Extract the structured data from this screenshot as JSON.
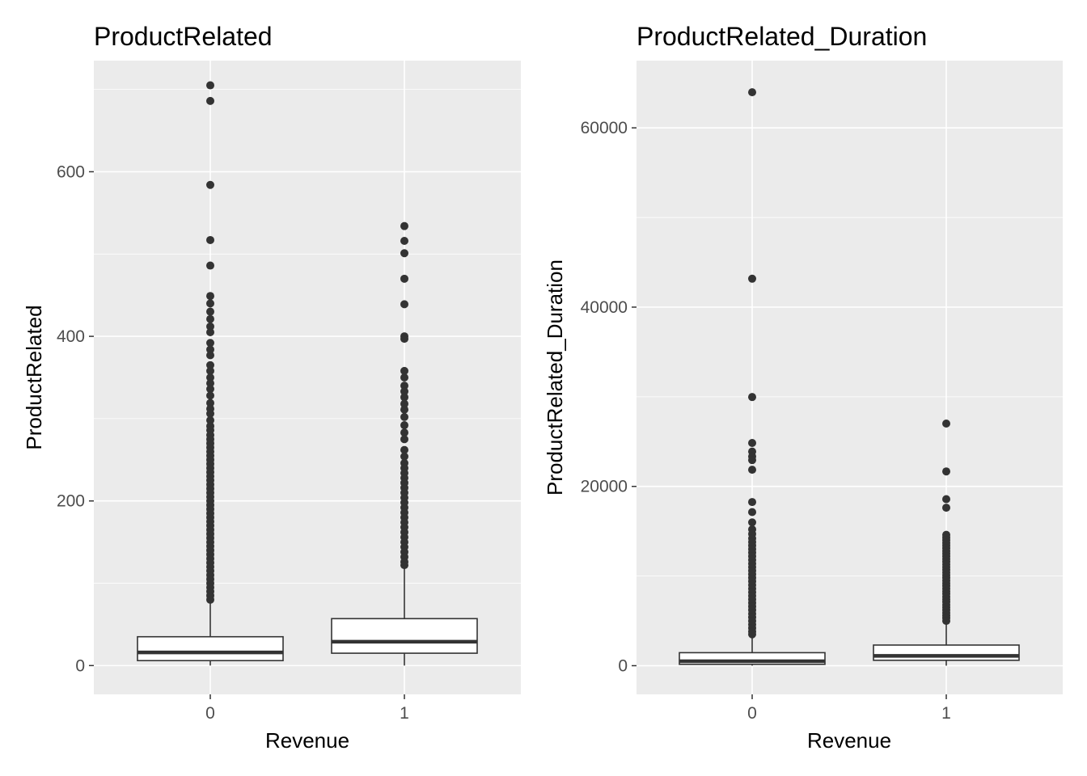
{
  "chart_data": [
    {
      "type": "boxplot",
      "title": "ProductRelated",
      "xlabel": "Revenue",
      "ylabel": "ProductRelated",
      "categories": [
        "0",
        "1"
      ],
      "ylim": [
        -35,
        735
      ],
      "yticks": [
        0,
        200,
        400,
        600
      ],
      "ytick_labels": [
        "0",
        "200",
        "400",
        "600"
      ],
      "grid": true,
      "boxes": [
        {
          "category": "0",
          "whisker_low": 0,
          "q1": 6,
          "median": 16,
          "q3": 35,
          "whisker_high": 78,
          "outliers": [
            705,
            686,
            584,
            517,
            486,
            449,
            440,
            430,
            421,
            412,
            405,
            392,
            384,
            377,
            365,
            358,
            350,
            343,
            336,
            328,
            319,
            312,
            306,
            298,
            291,
            286,
            280,
            275,
            270,
            265,
            260,
            255,
            250,
            245,
            240,
            235,
            230,
            225,
            220,
            215,
            210,
            205,
            200,
            195,
            190,
            185,
            180,
            175,
            170,
            165,
            160,
            155,
            150,
            145,
            140,
            135,
            130,
            125,
            120,
            115,
            110,
            105,
            100,
            95,
            90,
            85,
            80
          ]
        },
        {
          "category": "1",
          "whisker_low": 0,
          "q1": 15,
          "median": 29,
          "q3": 57,
          "whisker_high": 120,
          "outliers": [
            534,
            516,
            501,
            470,
            439,
            400,
            397,
            358,
            350,
            340,
            333,
            326,
            318,
            311,
            302,
            292,
            283,
            275,
            262,
            254,
            246,
            240,
            234,
            228,
            222,
            216,
            210,
            204,
            198,
            192,
            186,
            180,
            174,
            168,
            162,
            156,
            150,
            144,
            138,
            132,
            126,
            122
          ]
        }
      ]
    },
    {
      "type": "boxplot",
      "title": "ProductRelated_Duration",
      "xlabel": "Revenue",
      "ylabel": "ProductRelated_Duration",
      "categories": [
        "0",
        "1"
      ],
      "ylim": [
        -3200,
        67500
      ],
      "yticks": [
        0,
        20000,
        40000,
        60000
      ],
      "ytick_labels": [
        "0",
        "20000",
        "40000",
        "60000"
      ],
      "grid": true,
      "boxes": [
        {
          "category": "0",
          "whisker_low": 0,
          "q1": 150,
          "median": 500,
          "q3": 1450,
          "whisker_high": 3300,
          "outliers": [
            63974,
            43171,
            29970,
            24844,
            23888,
            23342,
            22937,
            21857,
            18255,
            17136,
            15984,
            15199,
            14700,
            14200,
            13800,
            13400,
            13000,
            12600,
            12200,
            11800,
            11400,
            11000,
            10600,
            10200,
            9800,
            9400,
            9000,
            8600,
            8200,
            7800,
            7400,
            7000,
            6600,
            6200,
            5800,
            5400,
            5000,
            4600,
            4200,
            3800,
            3500
          ]
        },
        {
          "category": "1",
          "whisker_low": 0,
          "q1": 600,
          "median": 1100,
          "q3": 2300,
          "whisker_high": 4800,
          "outliers": [
            27009,
            21672,
            18576,
            17624,
            14600,
            14300,
            14000,
            13700,
            13400,
            13100,
            12800,
            12500,
            12200,
            11900,
            11600,
            11300,
            11000,
            10700,
            10400,
            10100,
            9800,
            9500,
            9200,
            8900,
            8600,
            8300,
            8000,
            7700,
            7400,
            7100,
            6800,
            6500,
            6200,
            5900,
            5600,
            5300,
            5000
          ]
        }
      ]
    }
  ]
}
